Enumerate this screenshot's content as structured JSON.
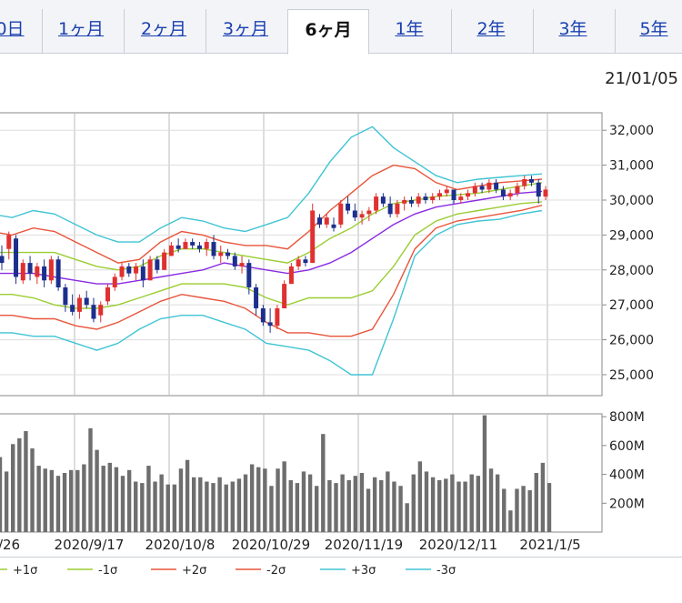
{
  "tabs": [
    {
      "label": "0日",
      "active": false
    },
    {
      "label": "1ヶ月",
      "active": false
    },
    {
      "label": "2ヶ月",
      "active": false
    },
    {
      "label": "3ヶ月",
      "active": false
    },
    {
      "label": "6ヶ月",
      "active": true
    },
    {
      "label": "1年",
      "active": false
    },
    {
      "label": "2年",
      "active": false
    },
    {
      "label": "3年",
      "active": false
    },
    {
      "label": "5年",
      "active": false
    }
  ],
  "date_label": "21/01/05",
  "chart_data": [
    {
      "type": "candlestick",
      "title": "",
      "ylim": [
        24400,
        32500
      ],
      "yticks": [
        "32,000",
        "31,000",
        "30,000",
        "29,000",
        "28,000",
        "27,000",
        "26,000",
        "25,000"
      ],
      "ytick_values": [
        32000,
        31000,
        30000,
        29000,
        28000,
        27000,
        26000,
        25000
      ],
      "x_tick_labels": [
        "/26",
        "2020/9/17",
        "2020/10/8",
        "2020/10/29",
        "2020/11/19",
        "2020/12/11",
        "2021/1/5"
      ],
      "colors": {
        "up": "#e03030",
        "down": "#1c2f8c",
        "ma": "#8b2be2",
        "sigma1": "#9acd32",
        "sigma2": "#e8553a",
        "sigma3": "#40c4d4"
      },
      "bands": {
        "ma": [
          27900,
          27900,
          27900,
          27800,
          27700,
          27600,
          27600,
          27700,
          27800,
          27900,
          28000,
          28200,
          28100,
          28000,
          27900,
          28000,
          28200,
          28500,
          28900,
          29300,
          29600,
          29800,
          29900,
          30000,
          30100,
          30200,
          30250
        ],
        "p1": [
          28500,
          28500,
          28500,
          28500,
          28300,
          28100,
          28000,
          28100,
          28400,
          28600,
          28600,
          28500,
          28400,
          28300,
          28200,
          28500,
          28900,
          29200,
          29600,
          29900,
          30000,
          30100,
          30150,
          30200,
          30300,
          30400,
          30500
        ],
        "m1": [
          27300,
          27300,
          27200,
          27000,
          26900,
          26900,
          27000,
          27200,
          27400,
          27600,
          27600,
          27600,
          27500,
          27200,
          27000,
          27200,
          27200,
          27200,
          27400,
          28100,
          29000,
          29400,
          29600,
          29700,
          29800,
          29900,
          29950
        ],
        "p2": [
          29100,
          29000,
          29200,
          29100,
          28800,
          28500,
          28200,
          28300,
          28800,
          29100,
          29000,
          28800,
          28700,
          28700,
          28600,
          29100,
          29700,
          30200,
          30700,
          31000,
          30900,
          30500,
          30300,
          30400,
          30500,
          30550,
          30600
        ],
        "m2": [
          26700,
          26700,
          26600,
          26600,
          26400,
          26300,
          26500,
          26800,
          27100,
          27300,
          27200,
          27100,
          26900,
          26500,
          26200,
          26200,
          26100,
          26100,
          26300,
          27300,
          28600,
          29200,
          29400,
          29500,
          29600,
          29700,
          29850
        ],
        "p3": [
          29600,
          29500,
          29700,
          29600,
          29300,
          29000,
          28800,
          28800,
          29200,
          29500,
          29400,
          29200,
          29100,
          29300,
          29500,
          30200,
          31100,
          31800,
          32100,
          31500,
          31100,
          30700,
          30500,
          30600,
          30650,
          30700,
          30750
        ],
        "m3": [
          26200,
          26200,
          26100,
          26100,
          25900,
          25700,
          25900,
          26300,
          26600,
          26700,
          26700,
          26500,
          26300,
          25900,
          25800,
          25700,
          25400,
          25000,
          25000,
          26600,
          28400,
          29000,
          29300,
          29400,
          29450,
          29600,
          29700
        ]
      },
      "candles": [
        [
          28400,
          28700,
          28000,
          28200
        ],
        [
          28600,
          29100,
          28300,
          29000
        ],
        [
          28900,
          29000,
          27600,
          27800
        ],
        [
          27700,
          28300,
          27600,
          28200
        ],
        [
          28200,
          28400,
          27700,
          27900
        ],
        [
          27800,
          28200,
          27600,
          28100
        ],
        [
          28100,
          28300,
          27500,
          27700
        ],
        [
          27700,
          28400,
          27600,
          28300
        ],
        [
          28300,
          28400,
          27400,
          27500
        ],
        [
          27500,
          27600,
          26800,
          27000
        ],
        [
          27000,
          27300,
          26700,
          26800
        ],
        [
          26800,
          27300,
          26600,
          27200
        ],
        [
          27200,
          27400,
          26900,
          27000
        ],
        [
          27000,
          27200,
          26500,
          26600
        ],
        [
          26700,
          27100,
          26500,
          27000
        ],
        [
          27100,
          27600,
          27000,
          27500
        ],
        [
          27500,
          27900,
          27400,
          27800
        ],
        [
          27800,
          28200,
          27700,
          28100
        ],
        [
          28100,
          28200,
          27800,
          27900
        ],
        [
          27900,
          28200,
          27700,
          28100
        ],
        [
          28100,
          28300,
          27500,
          27700
        ],
        [
          27700,
          28400,
          27700,
          28300
        ],
        [
          28300,
          28400,
          27900,
          28000
        ],
        [
          28000,
          28600,
          28000,
          28500
        ],
        [
          28400,
          28800,
          28400,
          28700
        ],
        [
          28700,
          28900,
          28500,
          28600
        ],
        [
          28600,
          28900,
          28600,
          28800
        ],
        [
          28800,
          28900,
          28600,
          28700
        ],
        [
          28700,
          28800,
          28500,
          28600
        ],
        [
          28600,
          28900,
          28400,
          28800
        ],
        [
          28800,
          29000,
          28300,
          28400
        ],
        [
          28400,
          28700,
          28200,
          28500
        ],
        [
          28500,
          28600,
          28300,
          28400
        ],
        [
          28400,
          28500,
          28000,
          28100
        ],
        [
          28100,
          28400,
          27900,
          28200
        ],
        [
          28200,
          28300,
          27300,
          27500
        ],
        [
          27500,
          27600,
          26700,
          26900
        ],
        [
          26900,
          27000,
          26400,
          26500
        ],
        [
          26500,
          26900,
          26200,
          26400
        ],
        [
          26400,
          27000,
          26300,
          26900
        ],
        [
          26900,
          27700,
          26900,
          27600
        ],
        [
          27600,
          28200,
          27600,
          28100
        ],
        [
          28100,
          28400,
          28000,
          28300
        ],
        [
          28300,
          28400,
          28100,
          28200
        ],
        [
          28200,
          29900,
          28200,
          29700
        ],
        [
          29500,
          29600,
          29200,
          29300
        ],
        [
          29300,
          29600,
          29200,
          29500
        ],
        [
          29300,
          29500,
          29100,
          29200
        ],
        [
          29300,
          30000,
          29200,
          29900
        ],
        [
          29900,
          30100,
          29600,
          29700
        ],
        [
          29700,
          29900,
          29400,
          29500
        ],
        [
          29500,
          29700,
          29300,
          29600
        ],
        [
          29600,
          29800,
          29400,
          29700
        ],
        [
          29700,
          30200,
          29600,
          30100
        ],
        [
          30100,
          30200,
          29800,
          29900
        ],
        [
          29900,
          30100,
          29500,
          29600
        ],
        [
          29600,
          30000,
          29500,
          29900
        ],
        [
          29900,
          30100,
          29700,
          30000
        ],
        [
          30000,
          30100,
          29800,
          29900
        ],
        [
          29900,
          30200,
          29800,
          30100
        ],
        [
          30100,
          30200,
          29900,
          30000
        ],
        [
          30000,
          30200,
          29900,
          30100
        ],
        [
          30100,
          30300,
          30000,
          30200
        ],
        [
          30200,
          30400,
          30100,
          30300
        ],
        [
          30300,
          30300,
          29900,
          30000
        ],
        [
          30000,
          30200,
          29900,
          30100
        ],
        [
          30100,
          30300,
          30000,
          30200
        ],
        [
          30200,
          30500,
          30100,
          30400
        ],
        [
          30400,
          30500,
          30200,
          30300
        ],
        [
          30300,
          30600,
          30200,
          30500
        ],
        [
          30500,
          30600,
          30200,
          30300
        ],
        [
          30300,
          30400,
          30000,
          30100
        ],
        [
          30100,
          30300,
          30000,
          30200
        ],
        [
          30200,
          30500,
          30100,
          30400
        ],
        [
          30400,
          30700,
          30300,
          30600
        ],
        [
          30600,
          30700,
          30400,
          30500
        ],
        [
          30500,
          30600,
          29900,
          30100
        ],
        [
          30100,
          30400,
          30000,
          30300
        ]
      ]
    },
    {
      "type": "bar",
      "ylim": [
        0,
        820
      ],
      "yticks": [
        "800M",
        "600M",
        "400M",
        "200M"
      ],
      "ytick_values": [
        800,
        600,
        400,
        200
      ],
      "values": [
        520,
        420,
        610,
        650,
        700,
        580,
        460,
        440,
        430,
        390,
        410,
        430,
        430,
        470,
        720,
        570,
        460,
        480,
        450,
        390,
        430,
        350,
        340,
        460,
        350,
        400,
        330,
        330,
        440,
        500,
        380,
        380,
        350,
        340,
        380,
        330,
        350,
        370,
        400,
        470,
        450,
        440,
        320,
        440,
        490,
        360,
        340,
        420,
        400,
        320,
        680,
        360,
        340,
        400,
        360,
        390,
        410,
        300,
        380,
        360,
        420,
        350,
        320,
        200,
        400,
        490,
        420,
        380,
        360,
        370,
        400,
        350,
        350,
        400,
        390,
        810,
        440,
        400,
        300,
        150,
        300,
        320,
        290,
        410,
        480,
        340
      ]
    }
  ],
  "legend": [
    {
      "label": "+1σ",
      "color": "#9acd32"
    },
    {
      "label": "-1σ",
      "color": "#9acd32"
    },
    {
      "label": "+2σ",
      "color": "#e8553a"
    },
    {
      "label": "-2σ",
      "color": "#e8553a"
    },
    {
      "label": "+3σ",
      "color": "#40c4d4"
    },
    {
      "label": "-3σ",
      "color": "#40c4d4"
    }
  ]
}
